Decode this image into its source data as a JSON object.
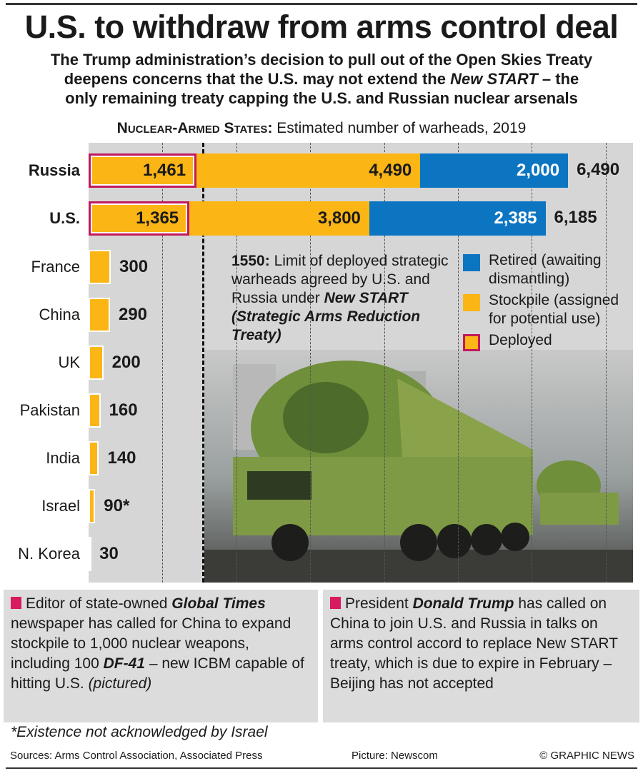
{
  "title": "U.S. to withdraw from arms control deal",
  "subtitle_lines": [
    "The Trump administration’s decision to pull out of the Open Skies Treaty",
    "deepens concerns that the U.S. may not extend the",
    "– the",
    "only remaining treaty capping the U.S. and Russian nuclear arsenals"
  ],
  "subtitle_italic": "New START",
  "chart_data": {
    "type": "bar",
    "title_bold": "Nuclear-Armed States:",
    "title": "Estimated number of warheads, 2019",
    "categories": [
      "Russia",
      "U.S.",
      "France",
      "China",
      "UK",
      "Pakistan",
      "India",
      "Israel",
      "N. Korea"
    ],
    "series": [
      {
        "name": "Deployed",
        "values": [
          1461,
          1365,
          null,
          null,
          null,
          null,
          null,
          null,
          null
        ],
        "labels": [
          "1,461",
          "1,365"
        ]
      },
      {
        "name": "Stockpile",
        "values": [
          4490,
          3800,
          300,
          290,
          200,
          160,
          140,
          90,
          30
        ],
        "labels": [
          "4,490",
          "3,800",
          "300",
          "290",
          "200",
          "160",
          "140",
          "90*",
          "30"
        ]
      },
      {
        "name": "Retired",
        "values": [
          2000,
          2385,
          0,
          0,
          0,
          0,
          0,
          0,
          0
        ],
        "labels": [
          "2,000",
          "2,385"
        ]
      }
    ],
    "totals": [
      "6,490",
      "6,185"
    ],
    "xlim": [
      0,
      7400
    ],
    "grid_step": 1000,
    "reference_line": {
      "value": 1550,
      "label_bold": "1550:",
      "label": "Limit of deployed strategic warheads agreed by U.S. and Russia under",
      "label_italic": "New START (Strategic Arms Reduction Treaty)"
    }
  },
  "legend": [
    {
      "label": "Retired (awaiting dismantling)",
      "color": "#0b75c2"
    },
    {
      "label": "Stockpile (assigned for potential use)",
      "color": "#fbb515"
    },
    {
      "label": "Deployed",
      "color": "#fbb515",
      "border": "#c2185b"
    }
  ],
  "notes": {
    "left": {
      "p1": "Editor of state-owned",
      "b1": "Global Times",
      "p2": "newspaper has called for China to expand stockpile to 1,000 nuclear weapons, including 100",
      "b2": "DF-41",
      "p3": "– new ICBM capable of hitting U.S.",
      "i1": "(pictured)"
    },
    "right": {
      "p1": "President",
      "b1": "Donald Trump",
      "p2": "has called on China to join U.S. and Russia in talks on arms control accord to replace New START treaty, which is due to expire in February – Beijing has not accepted"
    }
  },
  "footnote": "*Existence not acknowledged by Israel",
  "sources": "Sources: Arms Control Association, Associated Press",
  "picture": "Picture: Newscom",
  "copyright": "© GRAPHIC NEWS"
}
